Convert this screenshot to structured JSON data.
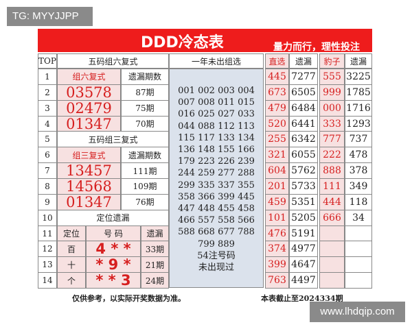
{
  "watermark_top": "TG: MYYJJPP",
  "watermark_bottom": "www.lhdqip.com",
  "title": "DDD冷态表",
  "slogan": "量力而行，理性投注",
  "top_label": "TOP",
  "rows": [
    "1",
    "2",
    "3",
    "4",
    "5",
    "6",
    "7",
    "8",
    "9",
    "10",
    "11",
    "12",
    "13",
    "14"
  ],
  "left": {
    "section1": "五码组六复式",
    "h1a": "组六复式",
    "h1b": "遗漏期数",
    "zu6": [
      {
        "num": "03578",
        "miss": "87期"
      },
      {
        "num": "02479",
        "miss": "75期"
      },
      {
        "num": "01347",
        "miss": "70期"
      }
    ],
    "section2": "五码组三复式",
    "h2a": "组三复式",
    "h2b": "遗漏期数",
    "zu3": [
      {
        "num": "13457",
        "miss": "111期"
      },
      {
        "num": "14568",
        "miss": "109期"
      },
      {
        "num": "01347",
        "miss": "76期"
      }
    ],
    "section3": "定位遗漏",
    "h3a": "定位",
    "h3b": "号 码",
    "h3c": "遗漏",
    "pos": [
      {
        "pos": "百",
        "code": "4 * *",
        "miss": "33期"
      },
      {
        "pos": "十",
        "code": "* 9 *",
        "miss": "21期"
      },
      {
        "pos": "个",
        "code": "* * 3",
        "miss": "24期"
      }
    ]
  },
  "middle": {
    "header": "一年未出组选",
    "numbers": [
      "001",
      "002",
      "003",
      "004",
      "007",
      "008",
      "011",
      "015",
      "016",
      "025",
      "027",
      "033",
      "044",
      "088",
      "112",
      "113",
      "115",
      "117",
      "133",
      "134",
      "136",
      "148",
      "155",
      "166",
      "179",
      "223",
      "226",
      "239",
      "244",
      "259",
      "277",
      "288",
      "299",
      "335",
      "337",
      "355",
      "358",
      "366",
      "399",
      "445",
      "447",
      "448",
      "455",
      "458",
      "466",
      "557",
      "558",
      "566",
      "588",
      "668",
      "677",
      "788"
    ],
    "last_line": "799 889",
    "count": "54注号码",
    "note": "未出现过"
  },
  "right": {
    "h_direct": "直选",
    "h_miss1": "遗漏",
    "h_leopard": "豹子",
    "h_miss2": "遗漏",
    "direct": [
      [
        "445",
        "7277"
      ],
      [
        "673",
        "6505"
      ],
      [
        "479",
        "6484"
      ],
      [
        "520",
        "6441"
      ],
      [
        "255",
        "6342"
      ],
      [
        "321",
        "6055"
      ],
      [
        "604",
        "5762"
      ],
      [
        "201",
        "5733"
      ],
      [
        "459",
        "5351"
      ],
      [
        "101",
        "5205"
      ],
      [
        "476",
        "5191"
      ],
      [
        "374",
        "4977"
      ],
      [
        "399",
        "4647"
      ],
      [
        "763",
        "4497"
      ]
    ],
    "leopard": [
      [
        "555",
        "3225"
      ],
      [
        "999",
        "1785"
      ],
      [
        "000",
        "1716"
      ],
      [
        "333",
        "1293"
      ],
      [
        "777",
        "737"
      ],
      [
        "222",
        "478"
      ],
      [
        "888",
        "378"
      ],
      [
        "111",
        "349"
      ],
      [
        "444",
        "118"
      ],
      [
        "666",
        "34"
      ]
    ]
  },
  "footer_left": "仅供参考，以实际开奖数据为准。",
  "footer_right": "本表截止至2024334期"
}
